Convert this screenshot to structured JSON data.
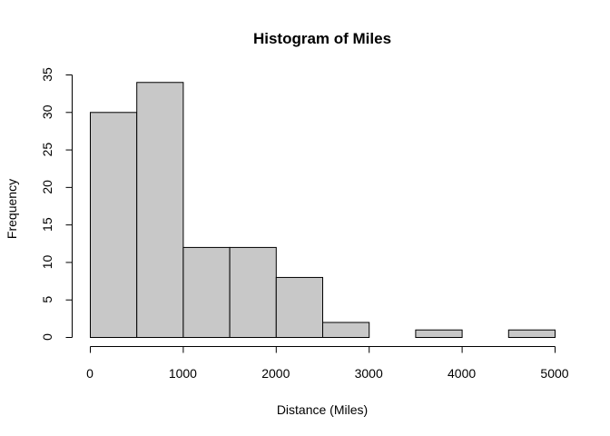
{
  "chart_data": {
    "type": "bar",
    "title": "Histogram of Miles",
    "xlabel": "Distance (Miles)",
    "ylabel": "Frequency",
    "bins": [
      {
        "start": 0,
        "end": 500,
        "count": 30
      },
      {
        "start": 500,
        "end": 1000,
        "count": 34
      },
      {
        "start": 1000,
        "end": 1500,
        "count": 12
      },
      {
        "start": 1500,
        "end": 2000,
        "count": 12
      },
      {
        "start": 2000,
        "end": 2500,
        "count": 8
      },
      {
        "start": 2500,
        "end": 3000,
        "count": 2
      },
      {
        "start": 3000,
        "end": 3500,
        "count": 0
      },
      {
        "start": 3500,
        "end": 4000,
        "count": 1
      },
      {
        "start": 4000,
        "end": 4500,
        "count": 0
      },
      {
        "start": 4500,
        "end": 5000,
        "count": 1
      }
    ],
    "xlim": [
      0,
      5000
    ],
    "ylim": [
      0,
      35
    ],
    "x_ticks": [
      "0",
      "1000",
      "2000",
      "3000",
      "4000",
      "5000"
    ],
    "y_ticks": [
      "0",
      "5",
      "10",
      "15",
      "20",
      "25",
      "30",
      "35"
    ],
    "bar_color": "#c8c8c8",
    "grid": false,
    "legend": "none"
  }
}
